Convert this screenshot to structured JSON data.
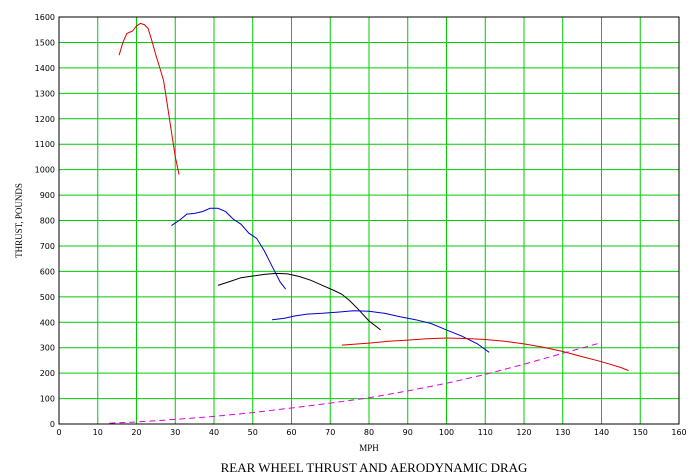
{
  "chart_data": {
    "type": "line",
    "title": "REAR WHEEL THRUST AND AERODYNAMIC DRAG",
    "xlabel": "MPH",
    "ylabel": "THRUST, POUNDS",
    "xlim": [
      0,
      160
    ],
    "ylim": [
      0,
      1600
    ],
    "xticks": [
      "0",
      "10",
      "20",
      "30",
      "40",
      "50",
      "60",
      "70",
      "80",
      "90",
      "100",
      "110",
      "120",
      "130",
      "140",
      "150",
      "160"
    ],
    "yticks": [
      "0",
      "100",
      "200",
      "300",
      "400",
      "500",
      "600",
      "700",
      "800",
      "900",
      "1000",
      "1100",
      "1200",
      "1300",
      "1400",
      "1500",
      "1600"
    ],
    "grid": true,
    "grid_color": "#00cc00",
    "series": [
      {
        "color": "#dd0000",
        "style": "solid",
        "points": [
          [
            15.5,
            1450
          ],
          [
            16.5,
            1500
          ],
          [
            17.5,
            1535
          ],
          [
            19,
            1545
          ],
          [
            20,
            1565
          ],
          [
            21,
            1575
          ],
          [
            22,
            1570
          ],
          [
            23,
            1555
          ],
          [
            24,
            1505
          ],
          [
            25,
            1450
          ],
          [
            26,
            1400
          ],
          [
            27,
            1350
          ],
          [
            28,
            1250
          ],
          [
            29,
            1150
          ],
          [
            30,
            1050
          ],
          [
            31,
            980
          ]
        ]
      },
      {
        "color": "#0000cc",
        "style": "solid",
        "points": [
          [
            29,
            780
          ],
          [
            31,
            800
          ],
          [
            33,
            825
          ],
          [
            35,
            828
          ],
          [
            37,
            835
          ],
          [
            39,
            848
          ],
          [
            41,
            848
          ],
          [
            43,
            835
          ],
          [
            45,
            805
          ],
          [
            47,
            785
          ],
          [
            49,
            750
          ],
          [
            51,
            730
          ],
          [
            53,
            680
          ],
          [
            55,
            620
          ],
          [
            57,
            560
          ],
          [
            58.5,
            530
          ]
        ]
      },
      {
        "color": "#000000",
        "style": "solid",
        "points": [
          [
            41,
            545
          ],
          [
            44,
            560
          ],
          [
            47,
            575
          ],
          [
            50,
            582
          ],
          [
            53,
            588
          ],
          [
            56,
            592
          ],
          [
            59,
            590
          ],
          [
            62,
            580
          ],
          [
            65,
            565
          ],
          [
            68,
            545
          ],
          [
            71,
            525
          ],
          [
            73,
            510
          ],
          [
            75,
            485
          ],
          [
            77,
            455
          ],
          [
            80,
            405
          ],
          [
            83,
            370
          ]
        ]
      },
      {
        "color": "#0000cc",
        "style": "solid",
        "points": [
          [
            55,
            410
          ],
          [
            58,
            415
          ],
          [
            61,
            425
          ],
          [
            64,
            432
          ],
          [
            68,
            435
          ],
          [
            72,
            440
          ],
          [
            76,
            445
          ],
          [
            80,
            443
          ],
          [
            84,
            435
          ],
          [
            88,
            422
          ],
          [
            92,
            410
          ],
          [
            96,
            395
          ],
          [
            100,
            370
          ],
          [
            104,
            345
          ],
          [
            108,
            315
          ],
          [
            111,
            282
          ]
        ]
      },
      {
        "color": "#dd0000",
        "style": "solid",
        "points": [
          [
            73,
            310
          ],
          [
            80,
            318
          ],
          [
            85,
            325
          ],
          [
            90,
            330
          ],
          [
            95,
            335
          ],
          [
            100,
            338
          ],
          [
            105,
            336
          ],
          [
            110,
            332
          ],
          [
            115,
            325
          ],
          [
            120,
            315
          ],
          [
            125,
            302
          ],
          [
            130,
            285
          ],
          [
            135,
            265
          ],
          [
            140,
            245
          ],
          [
            145,
            222
          ],
          [
            147,
            210
          ]
        ]
      },
      {
        "color": "#dd00dd",
        "style": "dashed",
        "points": [
          [
            13,
            3
          ],
          [
            20,
            8
          ],
          [
            30,
            18
          ],
          [
            40,
            30
          ],
          [
            50,
            45
          ],
          [
            60,
            63
          ],
          [
            70,
            82
          ],
          [
            80,
            103
          ],
          [
            90,
            130
          ],
          [
            100,
            160
          ],
          [
            110,
            195
          ],
          [
            120,
            235
          ],
          [
            130,
            278
          ],
          [
            140,
            320
          ]
        ]
      }
    ]
  }
}
